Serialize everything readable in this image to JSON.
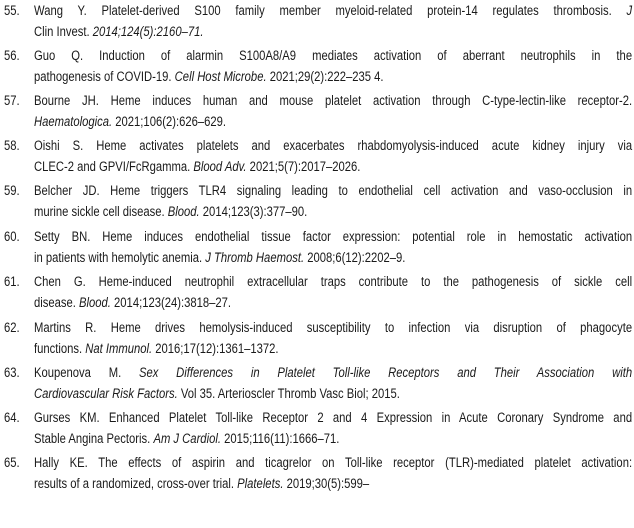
{
  "references": [
    {
      "num": "55.",
      "l1": [
        "Wang Y. Platelet-derived S100 family member myeloid-related protein-14 regulates thrombosis. ",
        "J"
      ],
      "l2": [
        "Clin Invest.",
        " 2014;124(5):2160–71."
      ]
    },
    {
      "num": "56.",
      "l1": [
        "Guo Q. Induction of alarmin S100A8/A9 mediates activation of aberrant neutrophils in the",
        ""
      ],
      "l2": [
        "pathogenesis of COVID-19. ",
        "Cell Host Microbe.",
        " 2021;29(2):222–235 4."
      ]
    },
    {
      "num": "57.",
      "l1": [
        "Bourne JH. Heme induces human and mouse platelet activation through C-type-lectin-like receptor-2.",
        ""
      ],
      "l2": [
        "",
        "Haematologica.",
        " 2021;106(2):626–629."
      ]
    },
    {
      "num": "58.",
      "l1": [
        "Oishi S. Heme activates platelets and exacerbates rhabdomyolysis-induced acute kidney injury via",
        ""
      ],
      "l2": [
        "CLEC-2 and GPVI/FcRgamma. ",
        "Blood Adv.",
        " 2021;5(7):2017–2026."
      ]
    },
    {
      "num": "59.",
      "l1": [
        "Belcher JD. Heme triggers TLR4 signaling leading to endothelial cell activation and vaso-occlusion in",
        ""
      ],
      "l2": [
        "murine sickle cell disease. ",
        "Blood.",
        " 2014;123(3):377–90."
      ]
    },
    {
      "num": "60.",
      "l1": [
        "Setty BN. Heme induces endothelial tissue factor expression: potential role in hemostatic activation",
        ""
      ],
      "l2": [
        "in patients with hemolytic anemia. ",
        "J Thromb Haemost.",
        " 2008;6(12):2202–9."
      ]
    },
    {
      "num": "61.",
      "l1": [
        "Chen G. Heme-induced neutrophil extracellular traps contribute to the pathogenesis of sickle cell",
        ""
      ],
      "l2": [
        "disease. ",
        "Blood.",
        " 2014;123(24):3818–27."
      ]
    },
    {
      "num": "62.",
      "l1": [
        "Martins R. Heme drives hemolysis-induced susceptibility to infection via disruption of phagocyte",
        ""
      ],
      "l2": [
        "functions. ",
        "Nat Immunol.",
        " 2016;17(12):1361–1372."
      ]
    },
    {
      "num": "63.",
      "l1": [
        "Koupenova M. ",
        "Sex Differences in Platelet Toll-like Receptors and Their Association with"
      ],
      "l2": [
        "",
        "Cardiovascular Risk Factors.",
        " Vol 35. Arterioscler Thromb Vasc Biol; 2015."
      ]
    },
    {
      "num": "64.",
      "l1": [
        "Gurses KM. Enhanced Platelet Toll-like Receptor 2 and 4 Expression in Acute Coronary Syndrome and",
        ""
      ],
      "l2": [
        "Stable Angina Pectoris. ",
        "Am J Cardiol.",
        " 2015;116(11):1666–71."
      ]
    },
    {
      "num": "65.",
      "l1": [
        "Hally KE. The effects of aspirin and ticagrelor on Toll-like receptor (TLR)-mediated platelet activation:",
        ""
      ],
      "l2": [
        "results of a randomized, cross-over trial. ",
        "Platelets.",
        " 2019;30(5):599–"
      ]
    }
  ]
}
